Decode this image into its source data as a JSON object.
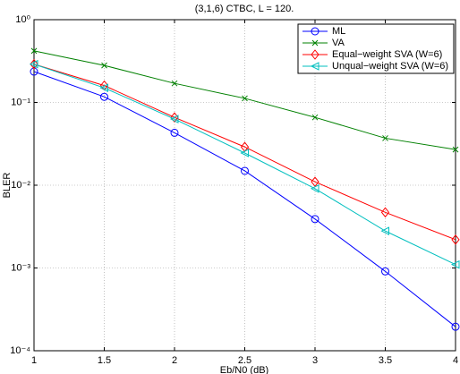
{
  "chart_data": {
    "type": "line",
    "title": "(3,1,6) CTBC, L = 120.",
    "x_label": "Eb/N0 (dB)",
    "y_label": "BLER",
    "x": [
      1,
      1.5,
      2,
      2.5,
      3,
      3.5,
      4
    ],
    "xlim": [
      1,
      4
    ],
    "xticks": [
      1,
      1.5,
      2,
      2.5,
      3,
      3.5,
      4
    ],
    "ylim": [
      0.0001,
      1
    ],
    "yticks": [
      {
        "value": 0.0001,
        "label": "10⁻⁴"
      },
      {
        "value": 0.001,
        "label": "10⁻³"
      },
      {
        "value": 0.01,
        "label": "10⁻²"
      },
      {
        "value": 0.1,
        "label": "10⁻¹"
      },
      {
        "value": 1,
        "label": "10⁰"
      }
    ],
    "log_y": true,
    "grid": true,
    "legend": "upper right",
    "series": [
      {
        "name": "ML",
        "color": "#0000ff",
        "marker": "o",
        "values": [
          0.236,
          0.117,
          0.043,
          0.0149,
          0.0039,
          0.00091,
          0.000195
        ]
      },
      {
        "name": "VA",
        "color": "#008000",
        "marker": "x",
        "values": [
          0.42,
          0.28,
          0.17,
          0.112,
          0.066,
          0.037,
          0.027
        ]
      },
      {
        "name": "Equal−weight SVA (W=6)",
        "color": "#ff0000",
        "marker": "d",
        "values": [
          0.29,
          0.16,
          0.066,
          0.029,
          0.011,
          0.0047,
          0.0022
        ]
      },
      {
        "name": "Unqual−weight SVA (W=6)",
        "color": "#00bfbf",
        "marker": "<",
        "values": [
          0.29,
          0.15,
          0.063,
          0.0245,
          0.0091,
          0.0028,
          0.0011
        ]
      }
    ]
  }
}
